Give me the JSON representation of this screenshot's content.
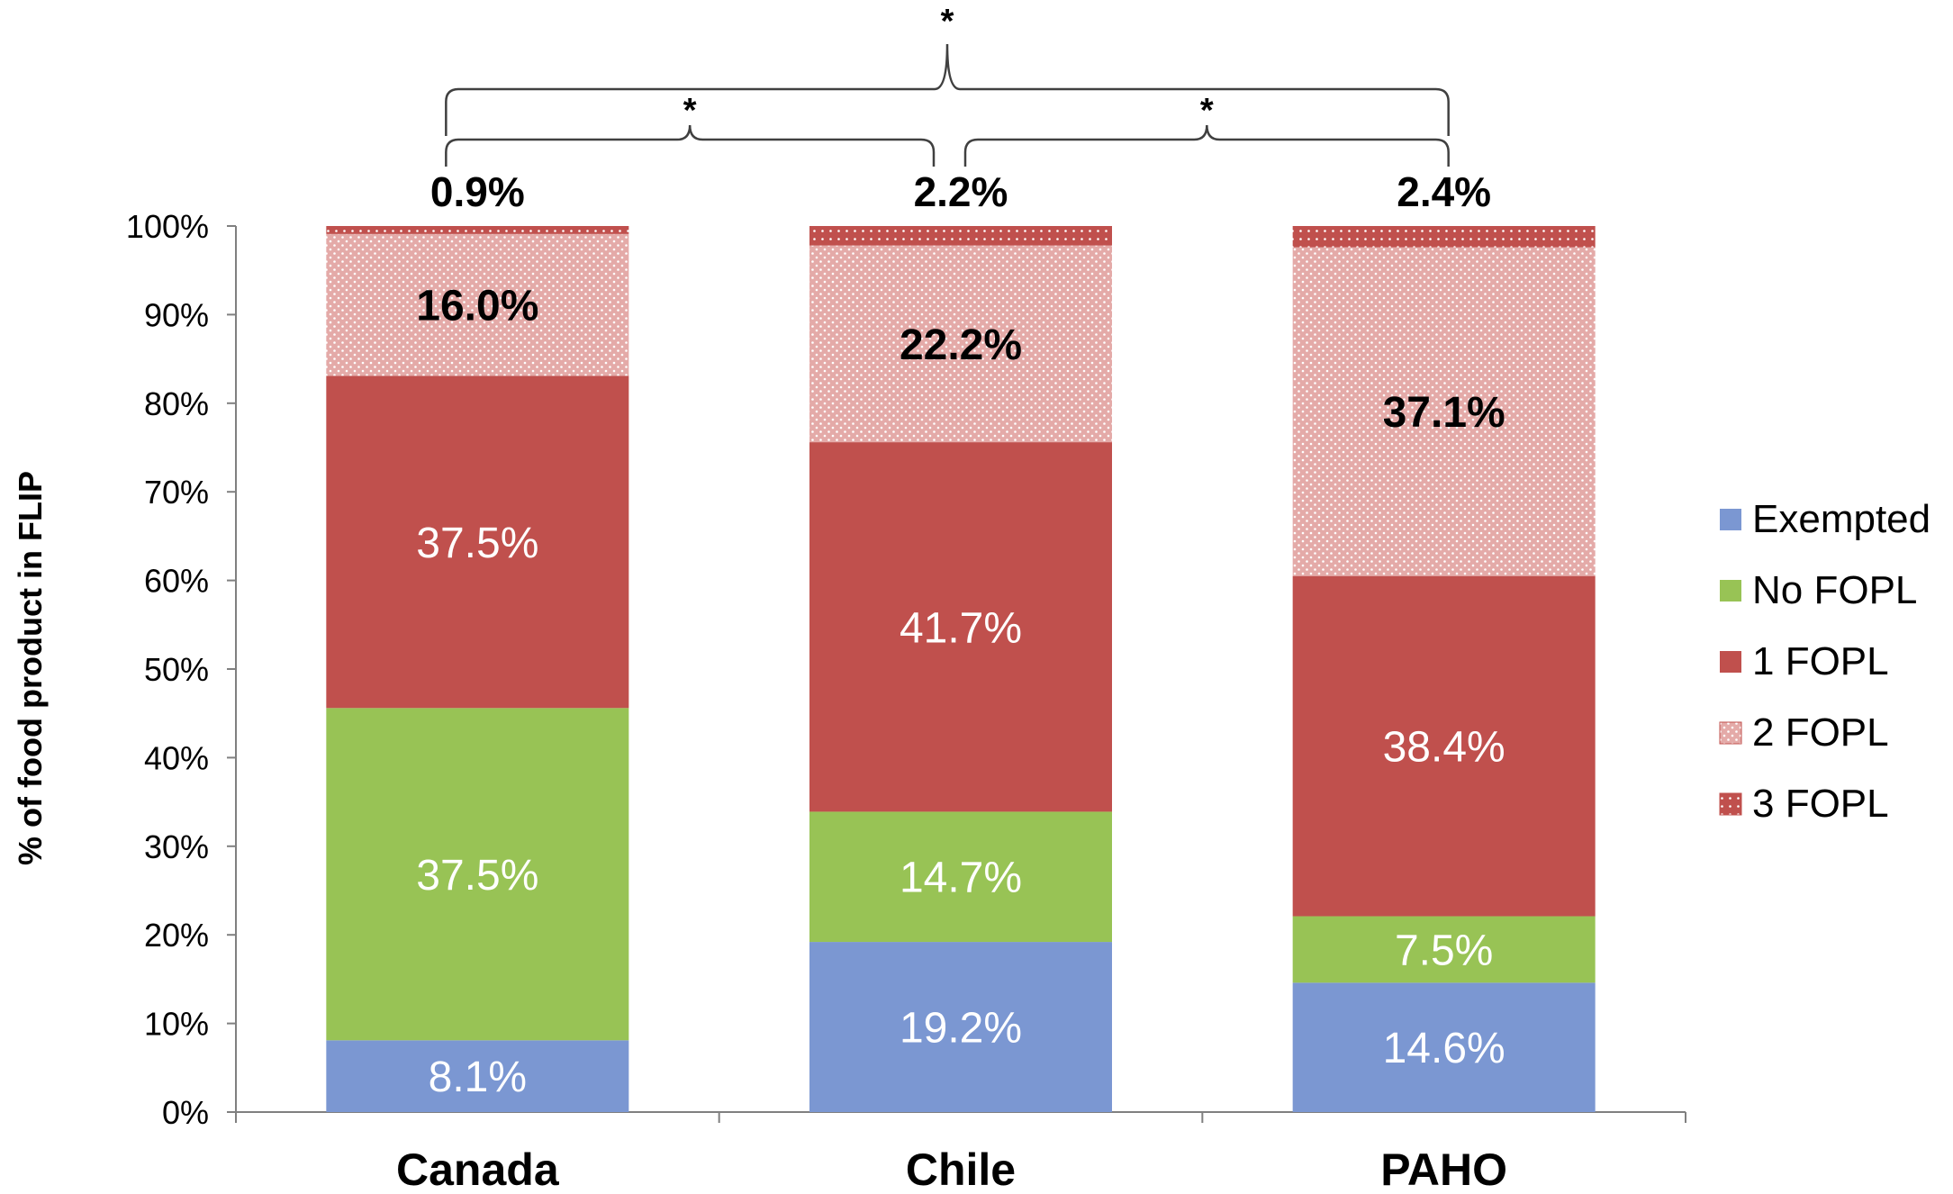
{
  "chart_data": {
    "type": "bar",
    "stacked": true,
    "title": "",
    "xlabel": "",
    "ylabel": "% of food product in FLIP",
    "ylim": [
      0,
      100
    ],
    "yticks": [
      "0%",
      "10%",
      "20%",
      "30%",
      "40%",
      "50%",
      "60%",
      "70%",
      "80%",
      "90%",
      "100%"
    ],
    "categories": [
      "Canada",
      "Chile",
      "PAHO"
    ],
    "series": [
      {
        "name": "Exempted",
        "color": "#7b97d2",
        "values": [
          8.1,
          19.2,
          14.6
        ],
        "labels": [
          "8.1%",
          "19.2%",
          "14.6%"
        ]
      },
      {
        "name": "No FOPL",
        "color": "#98c355",
        "values": [
          37.5,
          14.7,
          7.5
        ],
        "labels": [
          "37.5%",
          "14.7%",
          "7.5%"
        ]
      },
      {
        "name": "1 FOPL",
        "color": "#c0504d",
        "values": [
          37.5,
          41.7,
          38.4
        ],
        "labels": [
          "37.5%",
          "41.7%",
          "38.4%"
        ]
      },
      {
        "name": "2 FOPL",
        "color": "#e4aaa8",
        "pattern": "dots-light",
        "values": [
          16.0,
          22.2,
          37.1
        ],
        "labels": [
          "16.0%",
          "22.2%",
          "37.1%"
        ]
      },
      {
        "name": "3 FOPL",
        "color": "#c0504d",
        "pattern": "dots-dark",
        "values": [
          0.9,
          2.2,
          2.4
        ],
        "labels": [
          "0.9%",
          "2.2%",
          "2.4%"
        ]
      }
    ],
    "legend": "right",
    "grid": false,
    "annotations": [
      {
        "text": "*",
        "between": [
          "Canada",
          "PAHO"
        ]
      },
      {
        "text": "*",
        "between": [
          "Canada",
          "Chile"
        ]
      },
      {
        "text": "*",
        "between": [
          "Chile",
          "PAHO"
        ]
      }
    ]
  }
}
